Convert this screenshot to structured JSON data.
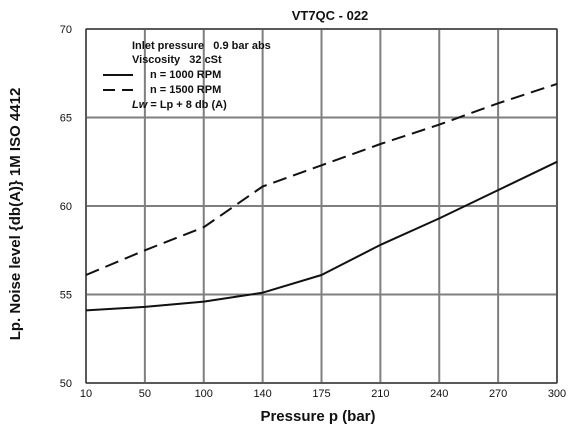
{
  "chart_data": {
    "type": "line",
    "title": "VT7QC - 022",
    "xlabel": "Pressure p (bar)",
    "ylabel": "Lp. Noise level {db(A)} 1M ISO 4412",
    "x": [
      "10",
      "50",
      "100",
      "140",
      "175",
      "210",
      "240",
      "270",
      "300"
    ],
    "ylim": [
      50,
      70
    ],
    "yticks": [
      "50",
      "55",
      "60",
      "65",
      "70"
    ],
    "grid": true,
    "series": [
      {
        "name": "n = 1000 RPM",
        "style": "solid",
        "values": [
          54.1,
          54.3,
          54.6,
          55.1,
          56.1,
          57.8,
          59.3,
          60.9,
          62.5
        ]
      },
      {
        "name": "n = 1500 RPM",
        "style": "dashed",
        "values": [
          56.1,
          57.5,
          58.8,
          61.1,
          62.3,
          63.5,
          64.6,
          65.8,
          66.9
        ]
      }
    ],
    "annotations": {
      "inlet_pressure": "Inlet pressure   0.9 bar abs",
      "viscosity": "Viscosity   32 cSt",
      "lw_prefix": "Lw",
      "lw_formula": " = Lp + 8 db (A)"
    },
    "legend_position": "top-left",
    "colors": {
      "line": "#111111",
      "grid": "#7f7f7f",
      "frame": "#333333"
    }
  }
}
